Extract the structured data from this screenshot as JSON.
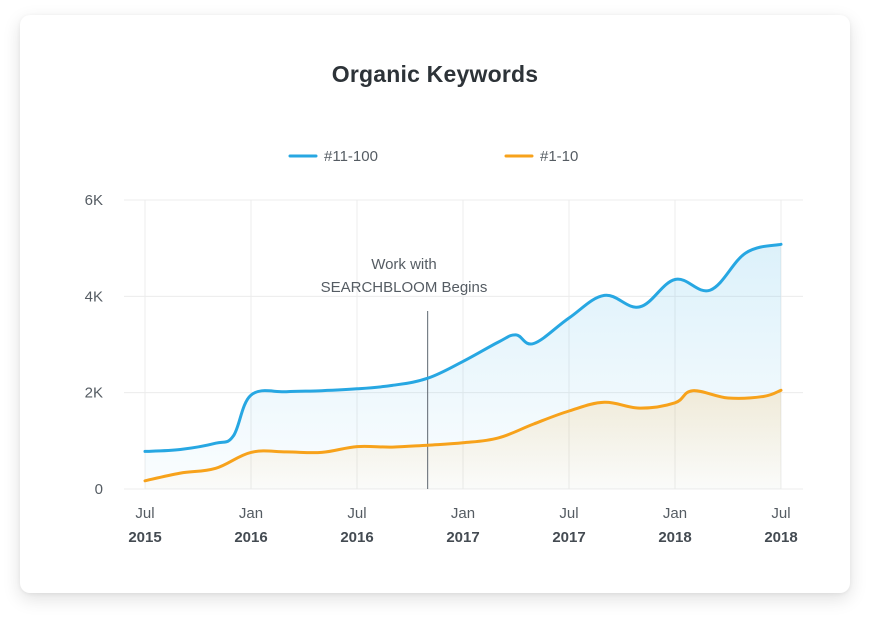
{
  "chart_data": {
    "type": "area",
    "title": "Organic Keywords",
    "xlabel": "",
    "ylabel": "",
    "ylim": [
      0,
      6000
    ],
    "yticks": [
      {
        "value": 0,
        "label": "0"
      },
      {
        "value": 2000,
        "label": "2K"
      },
      {
        "value": 4000,
        "label": "4K"
      },
      {
        "value": 6000,
        "label": "6K"
      }
    ],
    "xlim": [
      "2015-07",
      "2018-07"
    ],
    "xticks": [
      {
        "date": "2015-07",
        "month": "Jul",
        "year": "2015"
      },
      {
        "date": "2016-01",
        "month": "Jan",
        "year": "2016"
      },
      {
        "date": "2016-07",
        "month": "Jul",
        "year": "2016"
      },
      {
        "date": "2017-01",
        "month": "Jan",
        "year": "2017"
      },
      {
        "date": "2017-07",
        "month": "Jul",
        "year": "2017"
      },
      {
        "date": "2018-01",
        "month": "Jan",
        "year": "2018"
      },
      {
        "date": "2018-07",
        "month": "Jul",
        "year": "2018"
      }
    ],
    "grid": true,
    "legend_position": "top-center",
    "series": [
      {
        "name": "#11-100",
        "color": "#27a7e2",
        "points": [
          [
            "2015-07",
            780
          ],
          [
            "2015-09",
            820
          ],
          [
            "2015-11",
            950
          ],
          [
            "2015-12",
            1100
          ],
          [
            "2016-01",
            1950
          ],
          [
            "2016-03",
            2020
          ],
          [
            "2016-05",
            2040
          ],
          [
            "2016-07",
            2080
          ],
          [
            "2016-09",
            2150
          ],
          [
            "2016-11",
            2300
          ],
          [
            "2017-01",
            2650
          ],
          [
            "2017-03",
            3050
          ],
          [
            "2017-04",
            3200
          ],
          [
            "2017-05",
            3020
          ],
          [
            "2017-07",
            3550
          ],
          [
            "2017-09",
            4020
          ],
          [
            "2017-11",
            3780
          ],
          [
            "2018-01",
            4350
          ],
          [
            "2018-03",
            4130
          ],
          [
            "2018-05",
            4900
          ],
          [
            "2018-07",
            5080
          ]
        ]
      },
      {
        "name": "#1-10",
        "color": "#f7a21b",
        "points": [
          [
            "2015-07",
            170
          ],
          [
            "2015-09",
            330
          ],
          [
            "2015-11",
            430
          ],
          [
            "2016-01",
            760
          ],
          [
            "2016-03",
            770
          ],
          [
            "2016-05",
            760
          ],
          [
            "2016-07",
            880
          ],
          [
            "2016-09",
            870
          ],
          [
            "2016-11",
            910
          ],
          [
            "2017-01",
            960
          ],
          [
            "2017-03",
            1060
          ],
          [
            "2017-05",
            1350
          ],
          [
            "2017-07",
            1620
          ],
          [
            "2017-09",
            1800
          ],
          [
            "2017-11",
            1680
          ],
          [
            "2018-01",
            1790
          ],
          [
            "2018-02",
            2040
          ],
          [
            "2018-04",
            1890
          ],
          [
            "2018-06",
            1920
          ],
          [
            "2018-07",
            2050
          ]
        ]
      }
    ],
    "annotations": [
      {
        "date": "2016-11",
        "lines": [
          "Work with",
          "SEARCHBLOOM Begins"
        ]
      }
    ]
  }
}
